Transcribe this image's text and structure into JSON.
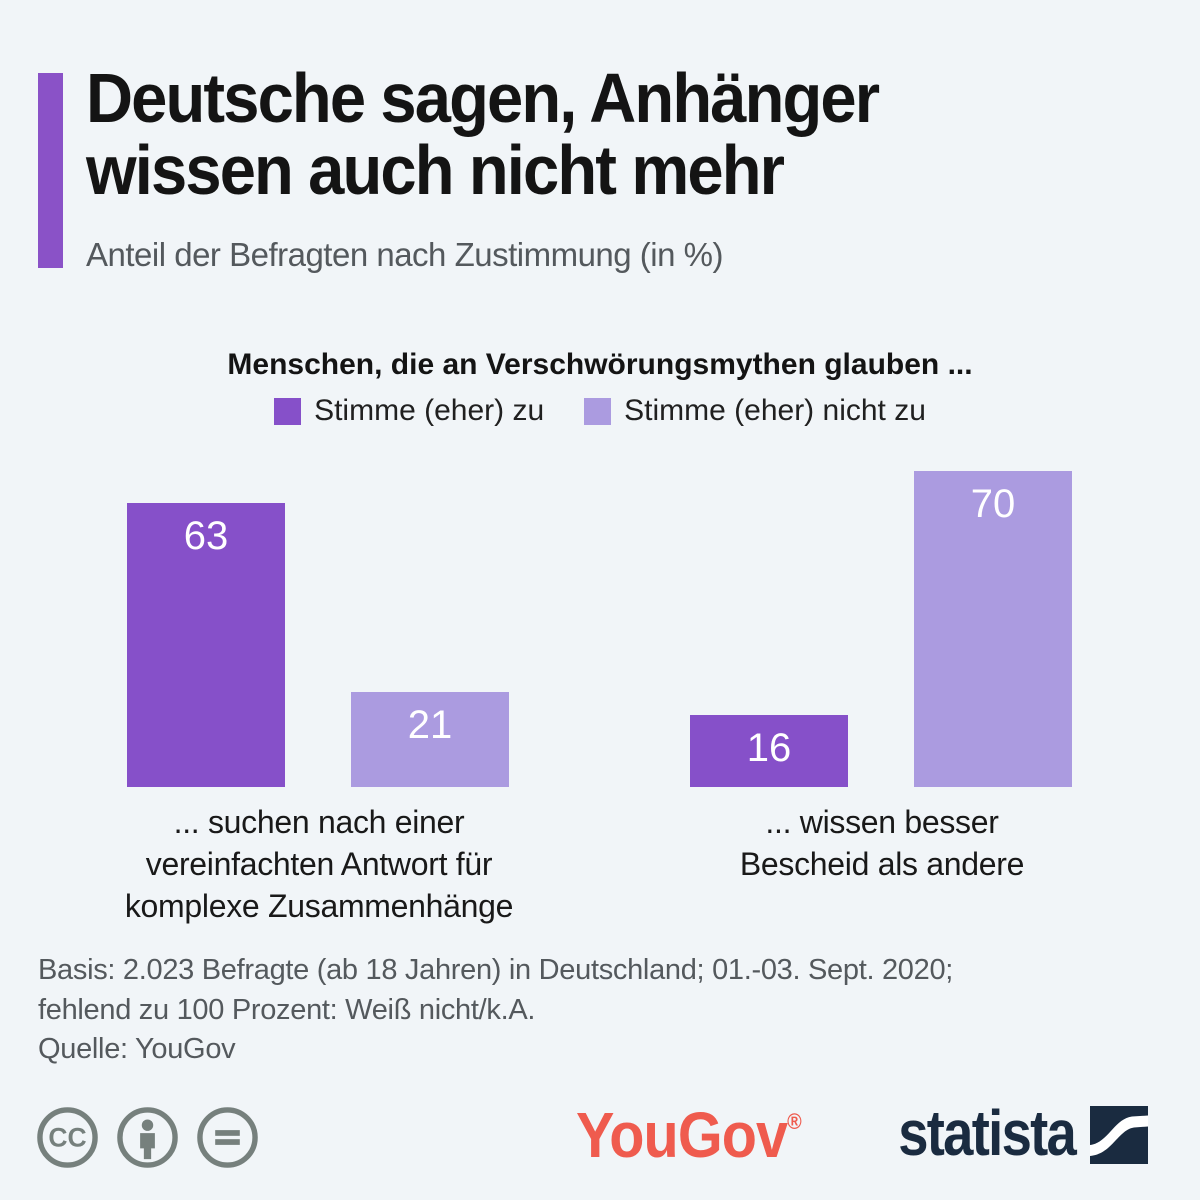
{
  "header": {
    "title": "Deutsche sagen, Anhänger\nwissen auch nicht mehr",
    "subtitle": "Anteil der Befragten nach Zustimmung (in %)",
    "accent_color": "#8a52c7"
  },
  "chart_data": {
    "type": "bar",
    "title": "Menschen, die an Verschwörungsmythen glauben ...",
    "unit": "%",
    "categories": [
      "... suchen nach einer\nvereinfachten Antwort für\nkomplexe Zusammenhänge",
      "... wissen besser\nBescheid als andere"
    ],
    "series": [
      {
        "name": "Stimme (eher) zu",
        "color": "#8650c9",
        "values": [
          63,
          16
        ]
      },
      {
        "name": "Stimme (eher) nicht zu",
        "color": "#ab9be0",
        "values": [
          21,
          70
        ]
      }
    ],
    "ylim": [
      0,
      70
    ],
    "grid": false,
    "legend_position": "top",
    "value_labels": "inside-top, white"
  },
  "footer": {
    "basis": "Basis: 2.023 Befragte (ab 18 Jahren) in Deutschland; 01.-03. Sept. 2020;\nfehlend zu 100 Prozent: Weiß nicht/k.A.",
    "source": "Quelle: YouGov"
  },
  "branding": {
    "license_icons": [
      "cc-icon",
      "attribution-icon",
      "no-derivatives-icon"
    ],
    "license_color": "#76807d",
    "yougov_text": "YouGov",
    "yougov_registered": "®",
    "yougov_color": "#ef5b4e",
    "statista_text": "statista",
    "statista_color": "#1a2b40"
  }
}
